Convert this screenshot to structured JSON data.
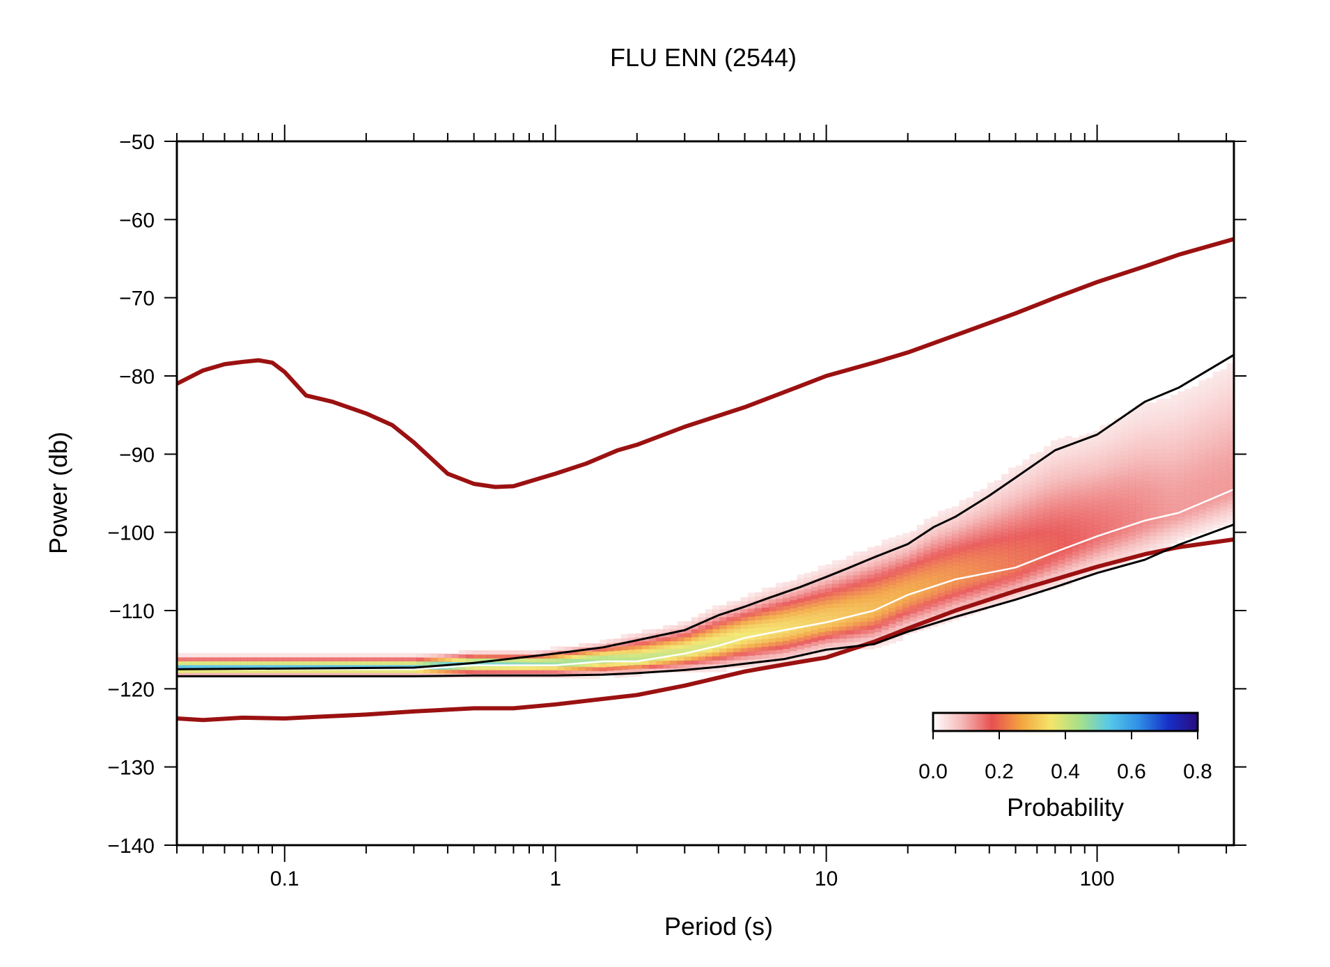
{
  "chart_data": {
    "type": "heatmap",
    "title": "FLU ENN (2544)",
    "xlabel": "Period (s)",
    "ylabel": "Power (db)",
    "x_scale": "log",
    "xlim": [
      0.04,
      320
    ],
    "ylim": [
      -140,
      -50
    ],
    "x_ticks": [
      0.1,
      1,
      10,
      100
    ],
    "x_tick_labels": [
      "0.1",
      "1",
      "10",
      "100"
    ],
    "y_ticks": [
      -50,
      -60,
      -70,
      -80,
      -90,
      -100,
      -110,
      -120,
      -130,
      -140
    ],
    "y_tick_labels": [
      "−50",
      "−60",
      "−70",
      "−80",
      "−90",
      "−100",
      "−110",
      "−120",
      "−130",
      "−140"
    ],
    "grid": false,
    "colorbar": {
      "label": "Probability",
      "range": [
        0.0,
        0.8
      ],
      "ticks": [
        "0.0",
        "0.2",
        "0.4",
        "0.6",
        "0.8"
      ],
      "colors": [
        "#ffffff",
        "#f5b6b6",
        "#e85050",
        "#f3a540",
        "#f4e56a",
        "#a6e08a",
        "#56c8e8",
        "#2f8fe6",
        "#1630c8",
        "#2a0a80"
      ],
      "placement": "lower-right"
    },
    "series": [
      {
        "name": "NHNM",
        "color": "#9b1111",
        "x": [
          0.04,
          0.05,
          0.06,
          0.07,
          0.08,
          0.09,
          0.1,
          0.12,
          0.15,
          0.2,
          0.25,
          0.3,
          0.4,
          0.5,
          0.6,
          0.7,
          0.8,
          1,
          1.3,
          1.7,
          2,
          3,
          5,
          8,
          10,
          15,
          20,
          30,
          50,
          70,
          100,
          150,
          200,
          320
        ],
        "y": [
          -81,
          -79.3,
          -78.5,
          -78.2,
          -78,
          -78.3,
          -79.5,
          -82.5,
          -83.3,
          -84.8,
          -86.3,
          -88.5,
          -92.5,
          -93.8,
          -94.2,
          -94.1,
          -93.5,
          -92.5,
          -91.2,
          -89.5,
          -88.8,
          -86.5,
          -84,
          -81.3,
          -80,
          -78.3,
          -77,
          -74.8,
          -72,
          -70,
          -68,
          -66,
          -64.5,
          -62.5
        ]
      },
      {
        "name": "NLNM",
        "color": "#9b1111",
        "x": [
          0.04,
          0.05,
          0.07,
          0.1,
          0.13,
          0.2,
          0.3,
          0.5,
          0.7,
          1,
          2,
          3,
          5,
          7,
          10,
          15,
          20,
          30,
          50,
          70,
          100,
          150,
          200,
          320
        ],
        "y": [
          -123.8,
          -124,
          -123.7,
          -123.8,
          -123.6,
          -123.3,
          -122.9,
          -122.5,
          -122.5,
          -122,
          -120.8,
          -119.6,
          -117.8,
          -116.9,
          -116,
          -114,
          -112.3,
          -110,
          -107.5,
          -106,
          -104.4,
          -102.8,
          -101.9,
          -100.9
        ]
      },
      {
        "name": "mode",
        "color": "#ffffff",
        "x": [
          0.04,
          0.3,
          0.5,
          1,
          1.5,
          2,
          3,
          4,
          5,
          7,
          10,
          15,
          20,
          30,
          50,
          70,
          100,
          150,
          200,
          320
        ],
        "y": [
          -117.5,
          -117.5,
          -117,
          -117,
          -116.5,
          -116.5,
          -115.5,
          -114.5,
          -113.5,
          -112.5,
          -111.5,
          -110,
          -108,
          -106,
          -104.5,
          -102.5,
          -100.5,
          -98.5,
          -97.5,
          -94.5
        ]
      },
      {
        "name": "upper percentile",
        "color": "#000000",
        "x": [
          0.04,
          0.3,
          0.5,
          1,
          1.5,
          2,
          3,
          4,
          5,
          6,
          8,
          10,
          12,
          15,
          20,
          25,
          30,
          40,
          50,
          70,
          100,
          150,
          200,
          320
        ],
        "y": [
          -117.5,
          -117.3,
          -116.7,
          -115.5,
          -114.7,
          -113.8,
          -112.5,
          -110.6,
          -109.5,
          -108.5,
          -107,
          -105.7,
          -104.6,
          -103.2,
          -101.5,
          -99.3,
          -98,
          -95.3,
          -93,
          -89.5,
          -87.5,
          -83.3,
          -81.5,
          -77.3
        ]
      },
      {
        "name": "lower percentile",
        "color": "#000000",
        "x": [
          0.04,
          0.3,
          0.5,
          1,
          1.5,
          2,
          3,
          4,
          5,
          7,
          10,
          15,
          20,
          30,
          50,
          70,
          100,
          150,
          200,
          320
        ],
        "y": [
          -118.4,
          -118.4,
          -118.3,
          -118.3,
          -118.2,
          -118,
          -117.6,
          -117.2,
          -116.8,
          -116.2,
          -115,
          -114.3,
          -112.7,
          -110.8,
          -108.6,
          -107,
          -105.2,
          -103.5,
          -101.6,
          -99
        ]
      }
    ]
  }
}
